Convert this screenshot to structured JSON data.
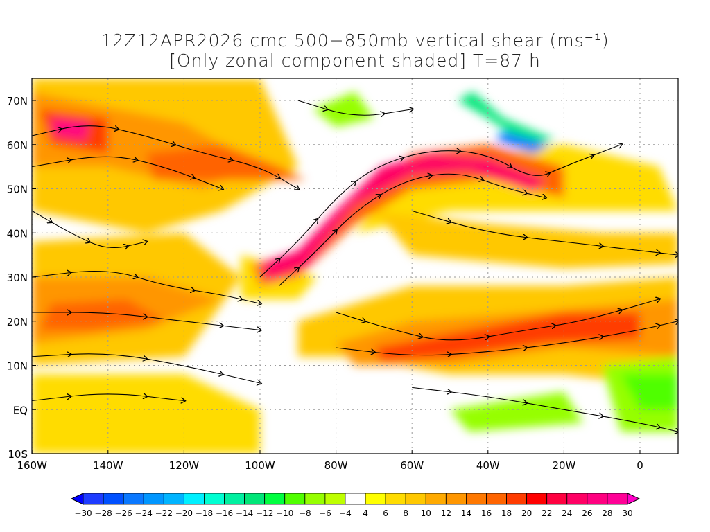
{
  "title": {
    "line1": "12Z12APR2026 cmc 500−850mb vertical shear (ms⁻¹)",
    "line2": "[Only zonal component shaded] T=87 h"
  },
  "map": {
    "lon_range": [
      -160,
      10
    ],
    "lat_range": [
      -10,
      75
    ],
    "lat_labels": [
      {
        "lat": 70,
        "text": "70N"
      },
      {
        "lat": 60,
        "text": "60N"
      },
      {
        "lat": 50,
        "text": "50N"
      },
      {
        "lat": 40,
        "text": "40N"
      },
      {
        "lat": 30,
        "text": "30N"
      },
      {
        "lat": 20,
        "text": "20N"
      },
      {
        "lat": 10,
        "text": "10N"
      },
      {
        "lat": 0,
        "text": "EQ"
      },
      {
        "lat": -10,
        "text": "10S"
      }
    ],
    "lon_labels": [
      {
        "lon": -160,
        "text": "160W"
      },
      {
        "lon": -140,
        "text": "140W"
      },
      {
        "lon": -120,
        "text": "120W"
      },
      {
        "lon": -100,
        "text": "100W"
      },
      {
        "lon": -80,
        "text": "80W"
      },
      {
        "lon": -60,
        "text": "60W"
      },
      {
        "lon": -40,
        "text": "40W"
      },
      {
        "lon": -20,
        "text": "20W"
      },
      {
        "lon": 0,
        "text": "0"
      }
    ]
  },
  "colorbar": {
    "labels": [
      "−30",
      "−28",
      "−26",
      "−24",
      "−22",
      "−20",
      "−18",
      "−16",
      "−14",
      "−12",
      "−10",
      "−8",
      "−6",
      "−4",
      "4",
      "6",
      "8",
      "10",
      "12",
      "14",
      "16",
      "18",
      "20",
      "22",
      "24",
      "26",
      "28",
      "30"
    ],
    "colors": [
      "#1e3cff",
      "#0050ff",
      "#0a78ff",
      "#0096ff",
      "#00b4ff",
      "#00f0ff",
      "#00ffd2",
      "#00f0a0",
      "#00e678",
      "#00ff40",
      "#50ff00",
      "#96ff00",
      "#beff00",
      "#ffffff",
      "#ffff00",
      "#ffdc00",
      "#ffc800",
      "#ffaa00",
      "#ff9600",
      "#ff7800",
      "#ff6400",
      "#ff3c00",
      "#ff0000",
      "#ff0040",
      "#ff0064",
      "#ff0080",
      "#ff0096"
    ],
    "under_color": "#0000ff",
    "over_color": "#ff00c8"
  }
}
